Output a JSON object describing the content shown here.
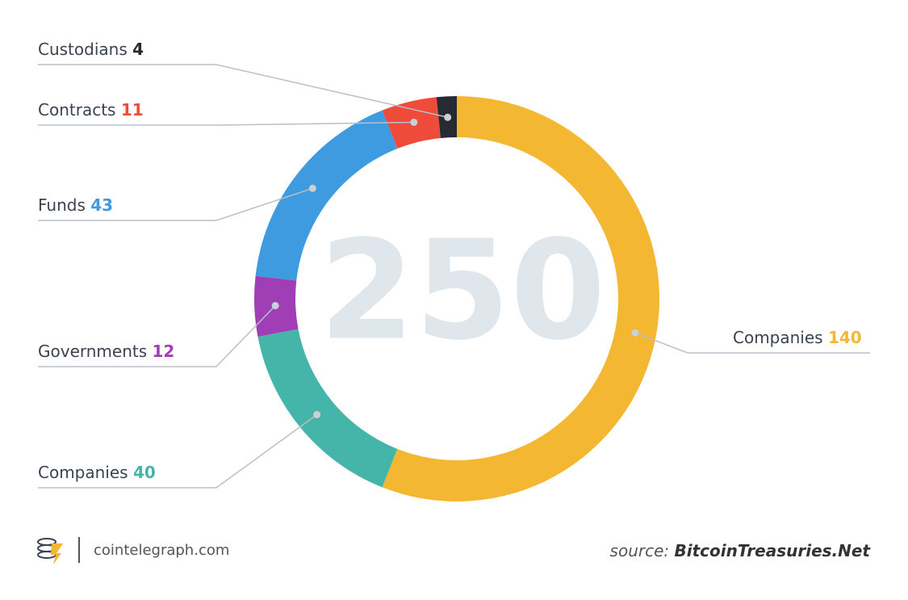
{
  "chart_data": {
    "type": "donut",
    "center_label": "250",
    "series": [
      {
        "name": "Companies",
        "color": "#f4b731",
        "values": [
          140
        ]
      },
      {
        "name": "Companies",
        "color": "#45b5aa",
        "values": [
          40
        ]
      },
      {
        "name": "Governments",
        "color": "#a03fb5",
        "values": [
          12
        ]
      },
      {
        "name": "Funds",
        "color": "#3f9be0",
        "values": [
          43
        ]
      },
      {
        "name": "Contracts",
        "color": "#ef4b3a",
        "values": [
          11
        ]
      },
      {
        "name": "Custodians",
        "color": "#252a33",
        "values": [
          4
        ]
      }
    ]
  },
  "footer": {
    "brand": "cointelegraph.com",
    "source_prefix": "source:",
    "source": "BitcoinTreasuries.Net"
  }
}
